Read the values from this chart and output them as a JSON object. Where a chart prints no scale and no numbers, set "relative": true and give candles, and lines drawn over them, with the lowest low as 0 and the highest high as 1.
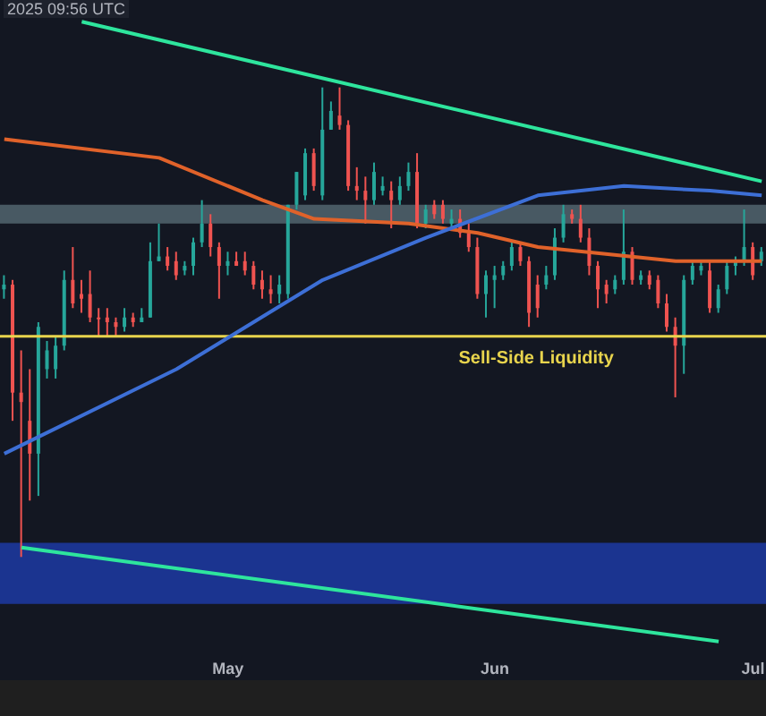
{
  "chart_data": {
    "type": "candlestick",
    "relative": true,
    "annotations": [
      "2025 09:56 UTC"
    ],
    "categories": [
      null,
      null,
      null,
      null,
      null,
      null,
      null,
      null,
      null,
      null,
      null,
      null,
      null,
      null,
      null,
      null,
      null,
      null,
      null,
      null,
      null,
      null,
      null,
      null,
      null,
      null,
      "May",
      null,
      null,
      null,
      null,
      null,
      null,
      null,
      null,
      null,
      null,
      null,
      null,
      null,
      null,
      null,
      null,
      null,
      null,
      null,
      null,
      null,
      null,
      null,
      null,
      null,
      null,
      null,
      null,
      null,
      null,
      "Jun",
      null,
      null,
      null,
      null,
      null,
      null,
      null,
      null,
      null,
      null,
      null,
      null,
      null,
      null,
      null,
      null,
      null,
      null,
      null,
      null,
      null,
      null,
      null,
      null,
      null,
      null,
      null,
      null,
      null,
      "Jul",
      null
    ],
    "ohlc": [
      [
        0.57,
        0.6,
        0.55,
        0.58
      ],
      [
        0.58,
        0.59,
        0.29,
        0.35
      ],
      [
        0.35,
        0.44,
        0,
        0.33
      ],
      [
        0.29,
        0.4,
        0.12,
        0.22
      ],
      [
        0.22,
        0.5,
        0.13,
        0.49
      ],
      [
        0.4,
        0.46,
        0.38,
        0.44
      ],
      [
        0.4,
        0.47,
        0.38,
        0.45
      ],
      [
        0.45,
        0.61,
        0.44,
        0.59
      ],
      [
        0.59,
        0.66,
        0.53,
        0.54
      ],
      [
        0.56,
        0.59,
        0.52,
        0.55
      ],
      [
        0.56,
        0.61,
        0.5,
        0.51
      ],
      [
        0.51,
        0.53,
        0.47,
        0.51
      ],
      [
        0.51,
        0.53,
        0.47,
        0.5
      ],
      [
        0.5,
        0.51,
        0.47,
        0.49
      ],
      [
        0.49,
        0.53,
        0.48,
        0.51
      ],
      [
        0.51,
        0.52,
        0.49,
        0.5
      ],
      [
        0.5,
        0.53,
        0.5,
        0.51
      ],
      [
        0.51,
        0.67,
        0.51,
        0.63
      ],
      [
        0.63,
        0.71,
        0.63,
        0.64
      ],
      [
        0.64,
        0.66,
        0.61,
        0.62
      ],
      [
        0.63,
        0.65,
        0.59,
        0.6
      ],
      [
        0.61,
        0.63,
        0.6,
        0.62
      ],
      [
        0.62,
        0.68,
        0.6,
        0.67
      ],
      [
        0.67,
        0.76,
        0.66,
        0.71
      ],
      [
        0.71,
        0.73,
        0.64,
        0.66
      ],
      [
        0.66,
        0.67,
        0.55,
        0.62
      ],
      [
        0.62,
        0.65,
        0.6,
        0.63
      ],
      [
        0.63,
        0.65,
        0.62,
        0.62
      ],
      [
        0.63,
        0.65,
        0.6,
        0.61
      ],
      [
        0.62,
        0.63,
        0.57,
        0.58
      ],
      [
        0.59,
        0.61,
        0.55,
        0.57
      ],
      [
        0.57,
        0.6,
        0.54,
        0.56
      ],
      [
        0.56,
        0.6,
        0.54,
        0.58
      ],
      [
        0.56,
        0.75,
        0.55,
        0.75
      ],
      [
        0.75,
        0.82,
        0.74,
        0.82
      ],
      [
        0.77,
        0.87,
        0.76,
        0.86
      ],
      [
        0.86,
        0.87,
        0.78,
        0.79
      ],
      [
        0.77,
        1.0,
        0.76,
        0.91
      ],
      [
        0.91,
        0.97,
        0.91,
        0.95
      ],
      [
        0.94,
        1.0,
        0.91,
        0.92
      ],
      [
        0.92,
        0.93,
        0.78,
        0.79
      ],
      [
        0.79,
        0.83,
        0.76,
        0.78
      ],
      [
        0.78,
        0.81,
        0.71,
        0.76
      ],
      [
        0.76,
        0.84,
        0.75,
        0.82
      ],
      [
        0.78,
        0.81,
        0.77,
        0.79
      ],
      [
        0.78,
        0.8,
        0.7,
        0.76
      ],
      [
        0.76,
        0.81,
        0.75,
        0.79
      ],
      [
        0.79,
        0.84,
        0.78,
        0.82
      ],
      [
        0.82,
        0.86,
        0.7,
        0.71
      ],
      [
        0.71,
        0.75,
        0.7,
        0.74
      ],
      [
        0.75,
        0.76,
        0.72,
        0.73
      ],
      [
        0.75,
        0.76,
        0.71,
        0.72
      ],
      [
        0.71,
        0.74,
        0.7,
        0.72
      ],
      [
        0.72,
        0.74,
        0.68,
        0.69
      ],
      [
        0.69,
        0.71,
        0.65,
        0.66
      ],
      [
        0.66,
        0.68,
        0.55,
        0.56
      ],
      [
        0.56,
        0.61,
        0.51,
        0.6
      ],
      [
        0.59,
        0.62,
        0.53,
        0.6
      ],
      [
        0.6,
        0.63,
        0.59,
        0.62
      ],
      [
        0.62,
        0.67,
        0.61,
        0.66
      ],
      [
        0.66,
        0.67,
        0.62,
        0.63
      ],
      [
        0.63,
        0.64,
        0.49,
        0.52
      ],
      [
        0.58,
        0.6,
        0.51,
        0.53
      ],
      [
        0.58,
        0.62,
        0.57,
        0.6
      ],
      [
        0.6,
        0.7,
        0.59,
        0.68
      ],
      [
        0.68,
        0.75,
        0.67,
        0.73
      ],
      [
        0.73,
        0.74,
        0.71,
        0.72
      ],
      [
        0.72,
        0.75,
        0.67,
        0.68
      ],
      [
        0.68,
        0.7,
        0.6,
        0.62
      ],
      [
        0.62,
        0.63,
        0.53,
        0.57
      ],
      [
        0.58,
        0.59,
        0.54,
        0.56
      ],
      [
        0.57,
        0.6,
        0.56,
        0.59
      ],
      [
        0.59,
        0.74,
        0.58,
        0.65
      ],
      [
        0.65,
        0.66,
        0.58,
        0.59
      ],
      [
        0.59,
        0.61,
        0.58,
        0.6
      ],
      [
        0.6,
        0.61,
        0.57,
        0.58
      ],
      [
        0.59,
        0.6,
        0.53,
        0.54
      ],
      [
        0.54,
        0.56,
        0.48,
        0.49
      ],
      [
        0.49,
        0.51,
        0.34,
        0.45
      ],
      [
        0.45,
        0.6,
        0.39,
        0.59
      ],
      [
        0.59,
        0.63,
        0.58,
        0.62
      ],
      [
        0.61,
        0.63,
        0.6,
        0.62
      ],
      [
        0.61,
        0.63,
        0.52,
        0.53
      ],
      [
        0.53,
        0.58,
        0.52,
        0.57
      ],
      [
        0.57,
        0.63,
        0.56,
        0.62
      ],
      [
        0.62,
        0.64,
        0.6,
        0.63
      ],
      [
        0.63,
        0.74,
        0.62,
        0.66
      ],
      [
        0.66,
        0.67,
        0.59,
        0.6
      ],
      [
        0.63,
        0.66,
        0.62,
        0.65
      ]
    ],
    "colors": [
      "#26a69a",
      "#ef5350",
      "#ef5350",
      "#ef5350",
      "#26a69a",
      "#26a69a",
      "#26a69a",
      "#26a69a",
      "#ef5350",
      "#ef5350",
      "#ef5350",
      "#ef5350",
      "#ef5350",
      "#ef5350",
      "#26a69a",
      "#ef5350",
      "#26a69a",
      "#26a69a",
      "#26a69a",
      "#ef5350",
      "#ef5350",
      "#26a69a",
      "#26a69a",
      "#26a69a",
      "#ef5350",
      "#ef5350",
      "#26a69a",
      "#ef5350",
      "#ef5350",
      "#ef5350",
      "#ef5350",
      "#ef5350",
      "#26a69a",
      "#26a69a",
      "#26a69a",
      "#26a69a",
      "#ef5350",
      "#26a69a",
      "#26a69a",
      "#ef5350",
      "#ef5350",
      "#ef5350",
      "#ef5350",
      "#26a69a",
      "#26a69a",
      "#ef5350",
      "#26a69a",
      "#26a69a",
      "#ef5350",
      "#26a69a",
      "#ef5350",
      "#ef5350",
      "#26a69a",
      "#ef5350",
      "#ef5350",
      "#ef5350",
      "#26a69a",
      "#26a69a",
      "#26a69a",
      "#26a69a",
      "#ef5350",
      "#ef5350",
      "#ef5350",
      "#26a69a",
      "#26a69a",
      "#26a69a",
      "#ef5350",
      "#ef5350",
      "#ef5350",
      "#ef5350",
      "#ef5350",
      "#26a69a",
      "#26a69a",
      "#ef5350",
      "#26a69a",
      "#ef5350",
      "#ef5350",
      "#ef5350",
      "#ef5350",
      "#26a69a",
      "#26a69a",
      "#26a69a",
      "#ef5350",
      "#26a69a",
      "#26a69a",
      "#26a69a",
      "#26a69a",
      "#ef5350",
      "#26a69a"
    ],
    "series": [
      {
        "type": "line",
        "color": "#e0622a",
        "values": [
          0.89,
          null,
          null,
          null,
          null,
          null,
          null,
          null,
          null,
          null,
          null,
          null,
          null,
          null,
          null,
          null,
          null,
          null,
          0.85,
          null,
          null,
          null,
          null,
          null,
          null,
          null,
          null,
          null,
          null,
          null,
          0.76,
          null,
          null,
          null,
          null,
          null,
          0.72,
          null,
          null,
          null,
          null,
          null,
          null,
          null,
          null,
          null,
          null,
          0.71,
          null,
          null,
          null,
          null,
          null,
          null,
          null,
          0.69,
          null,
          null,
          null,
          null,
          null,
          null,
          0.66,
          null,
          null,
          null,
          null,
          null,
          null,
          null,
          null,
          null,
          null,
          null,
          null,
          null,
          null,
          null,
          0.63,
          null,
          null,
          null,
          null,
          null,
          null,
          null,
          null,
          null,
          0.63
        ]
      },
      {
        "type": "line",
        "color": "#3d6fd6",
        "values": [
          0.22,
          null,
          null,
          null,
          null,
          null,
          null,
          null,
          null,
          null,
          null,
          null,
          null,
          null,
          null,
          null,
          null,
          null,
          null,
          null,
          0.4,
          null,
          null,
          null,
          null,
          null,
          null,
          null,
          null,
          null,
          null,
          null,
          null,
          null,
          null,
          null,
          null,
          0.59,
          null,
          null,
          null,
          null,
          null,
          null,
          null,
          null,
          null,
          null,
          null,
          0.68,
          null,
          null,
          null,
          null,
          null,
          null,
          null,
          null,
          null,
          null,
          null,
          null,
          0.77,
          null,
          null,
          null,
          null,
          null,
          null,
          null,
          null,
          null,
          0.79,
          null,
          null,
          null,
          null,
          null,
          null,
          null,
          null,
          null,
          0.78,
          null,
          null,
          null,
          null,
          null,
          0.77
        ]
      },
      {
        "type": "line",
        "color": "#2ee59d",
        "values": [
          null,
          null,
          null,
          null,
          null,
          null,
          null,
          null,
          null,
          1.14,
          null,
          null,
          null,
          null,
          null,
          null,
          null,
          null,
          null,
          null,
          null,
          null,
          null,
          null,
          null,
          null,
          null,
          null,
          null,
          null,
          null,
          null,
          null,
          null,
          null,
          null,
          null,
          null,
          null,
          null,
          null,
          null,
          null,
          null,
          null,
          null,
          null,
          null,
          null,
          null,
          null,
          null,
          null,
          null,
          null,
          null,
          null,
          null,
          null,
          null,
          null,
          null,
          null,
          null,
          null,
          null,
          null,
          null,
          null,
          null,
          null,
          null,
          null,
          null,
          null,
          null,
          null,
          null,
          null,
          null,
          null,
          null,
          null,
          null,
          null,
          null,
          null,
          null,
          0.8
        ]
      },
      {
        "type": "line",
        "color": "#2ee59d",
        "values": [
          null,
          null,
          0.02,
          null,
          null,
          null,
          null,
          null,
          null,
          null,
          null,
          null,
          null,
          null,
          null,
          null,
          null,
          null,
          null,
          null,
          null,
          null,
          null,
          null,
          null,
          null,
          null,
          null,
          null,
          null,
          null,
          null,
          null,
          null,
          null,
          null,
          null,
          null,
          null,
          null,
          null,
          null,
          null,
          null,
          null,
          null,
          null,
          null,
          null,
          null,
          null,
          null,
          null,
          null,
          null,
          null,
          null,
          null,
          null,
          null,
          null,
          null,
          null,
          null,
          null,
          null,
          null,
          null,
          null,
          null,
          null,
          null,
          null,
          null,
          null,
          null,
          null,
          null,
          null,
          null,
          null,
          null,
          null,
          -0.18,
          null,
          null,
          null,
          null,
          null
        ]
      }
    ],
    "ref_lines": [
      {
        "axis": "y",
        "value": 0.47,
        "label": "Sell-Side Liquidity",
        "color": "#e8d44d"
      }
    ],
    "bands": [
      {
        "axis": "y",
        "from": 0.71,
        "to": 0.75,
        "color": "#5b7079"
      },
      {
        "axis": "y",
        "from": -0.1,
        "to": 0.03,
        "color": "#1f3fb5"
      }
    ]
  }
}
